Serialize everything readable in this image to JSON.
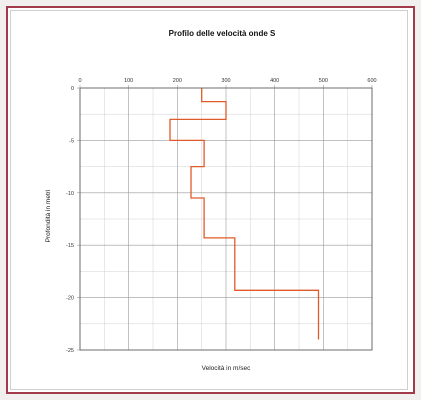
{
  "chart_data": {
    "type": "line",
    "title": "Profilo delle velocità onde S",
    "xlabel": "Velocità in m/sec",
    "ylabel": "Profondità in metri",
    "xlim": [
      0,
      600
    ],
    "ylim": [
      -25,
      0
    ],
    "xticks": [
      "0",
      "100",
      "200",
      "300",
      "400",
      "500",
      "600"
    ],
    "yticks": [
      "0",
      "-5",
      "-10",
      "-15",
      "-20",
      "-25"
    ],
    "x_axis_position": "top",
    "grid": true,
    "series": [
      {
        "color": "#e05a2b",
        "points": [
          [
            250,
            0
          ],
          [
            250,
            -1.3
          ],
          [
            300,
            -1.3
          ],
          [
            300,
            -3
          ],
          [
            185,
            -3
          ],
          [
            185,
            -5
          ],
          [
            255,
            -5
          ],
          [
            255,
            -7.5
          ],
          [
            228,
            -7.5
          ],
          [
            228,
            -10.5
          ],
          [
            255,
            -10.5
          ],
          [
            255,
            -14.3
          ],
          [
            318,
            -14.3
          ],
          [
            318,
            -19.3
          ],
          [
            490,
            -19.3
          ],
          [
            490,
            -24
          ]
        ]
      }
    ]
  }
}
